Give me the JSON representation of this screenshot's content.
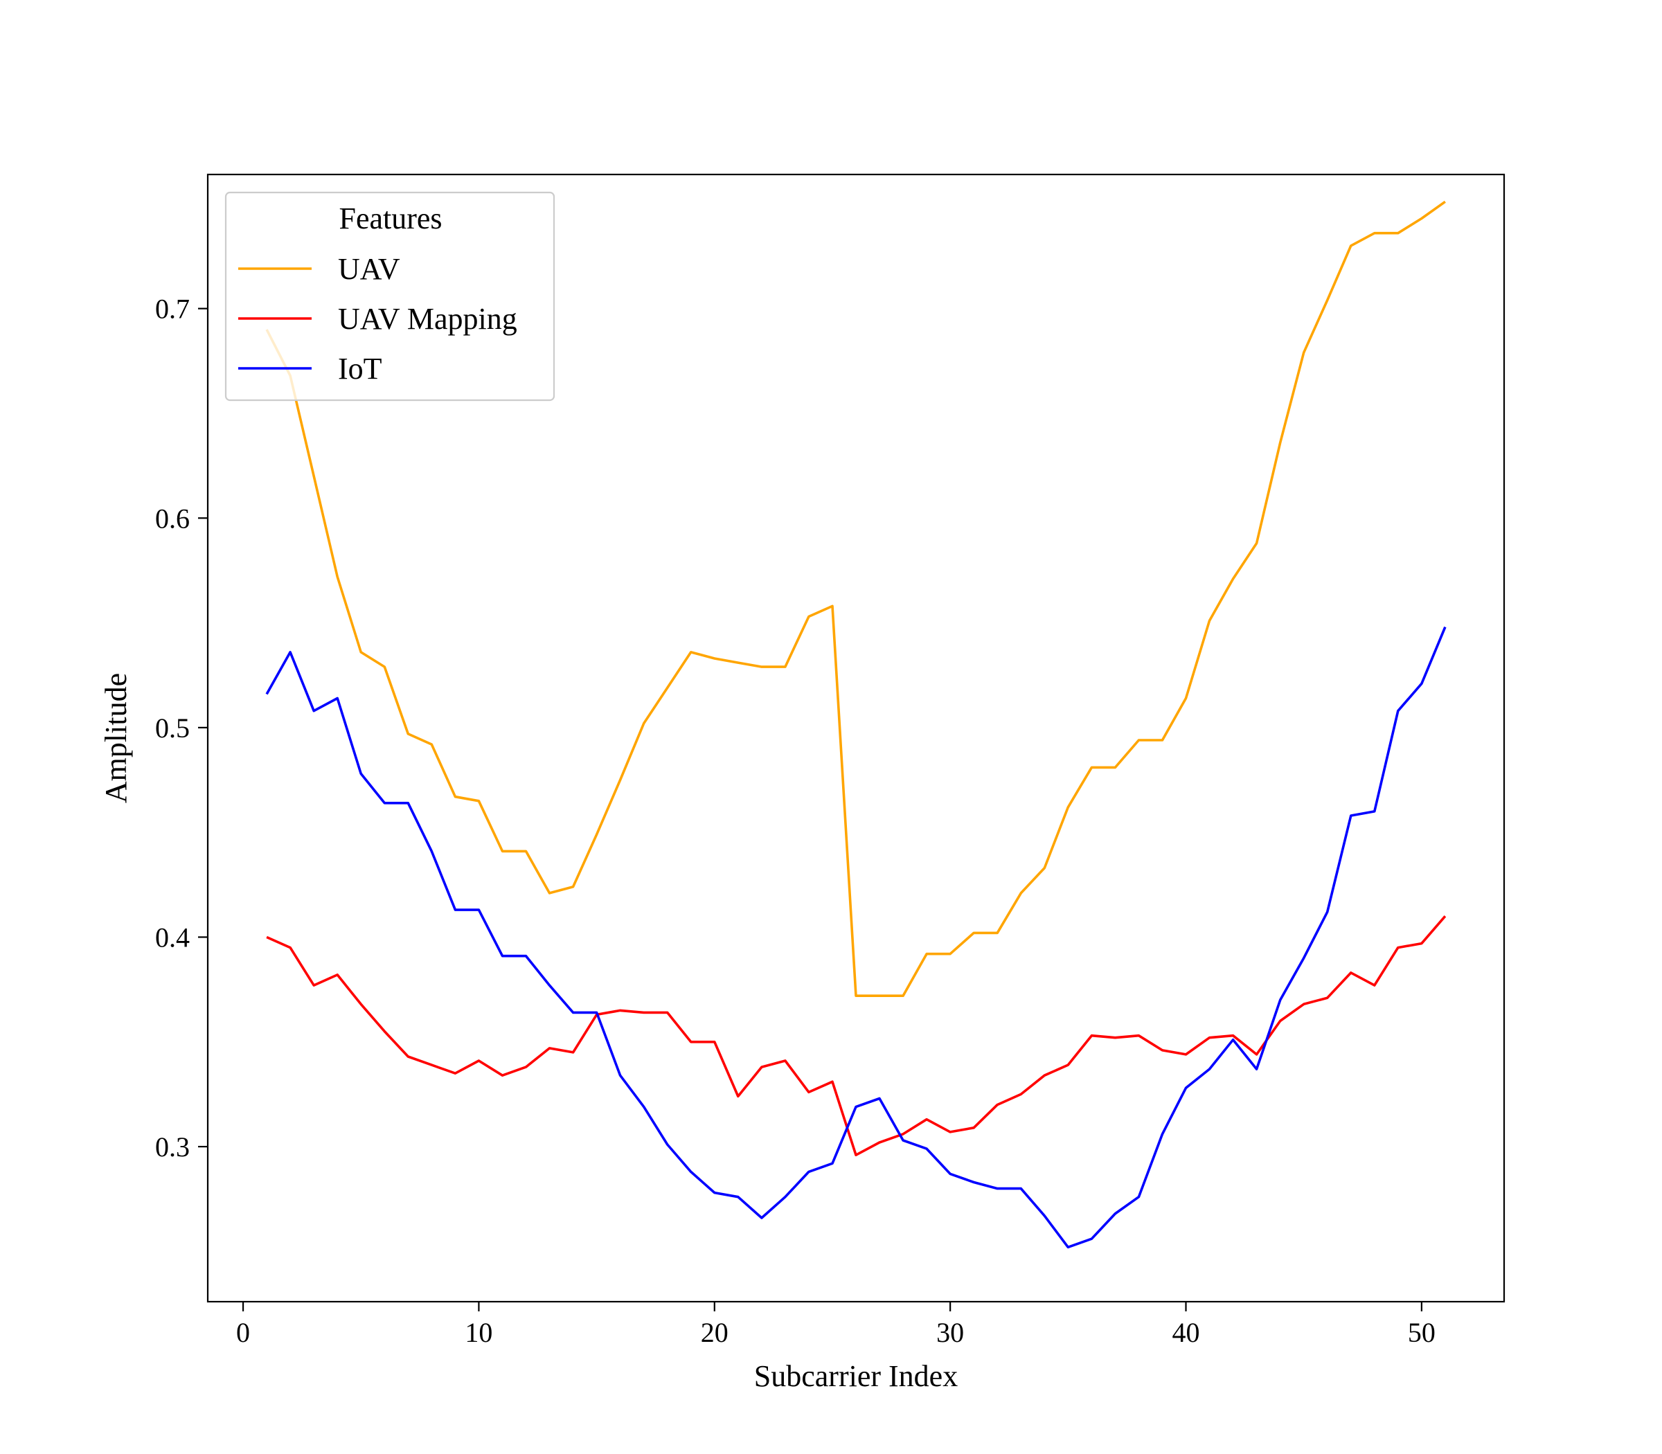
{
  "chart_data": {
    "type": "line",
    "title": "",
    "xlabel": "Subcarrier Index",
    "ylabel": "Amplitude",
    "xlim": [
      -1.5,
      53.5
    ],
    "ylim": [
      0.226,
      0.764
    ],
    "xticks": [
      0,
      10,
      20,
      30,
      40,
      50
    ],
    "yticks": [
      0.3,
      0.4,
      0.5,
      0.6,
      0.7
    ],
    "xtick_labels": [
      "0",
      "10",
      "20",
      "30",
      "40",
      "50"
    ],
    "ytick_labels": [
      "0.3",
      "0.4",
      "0.5",
      "0.6",
      "0.7"
    ],
    "grid": false,
    "legend": {
      "title": "Features",
      "placement": "upper-left"
    },
    "x": [
      1,
      2,
      3,
      4,
      5,
      6,
      7,
      8,
      9,
      10,
      11,
      12,
      13,
      14,
      15,
      16,
      17,
      18,
      19,
      20,
      21,
      22,
      23,
      24,
      25,
      26,
      27,
      28,
      29,
      30,
      31,
      32,
      33,
      34,
      35,
      36,
      37,
      38,
      39,
      40,
      41,
      42,
      43,
      44,
      45,
      46,
      47,
      48,
      49,
      50,
      51
    ],
    "series": [
      {
        "name": "UAV",
        "color": "#ffa500",
        "values": [
          0.69,
          0.668,
          0.62,
          0.572,
          0.536,
          0.529,
          0.497,
          0.492,
          0.467,
          0.465,
          0.441,
          0.441,
          0.421,
          0.424,
          0.449,
          0.475,
          0.502,
          0.519,
          0.536,
          0.533,
          0.531,
          0.529,
          0.529,
          0.553,
          0.558,
          0.372,
          0.372,
          0.372,
          0.392,
          0.392,
          0.402,
          0.402,
          0.421,
          0.433,
          0.462,
          0.481,
          0.481,
          0.494,
          0.494,
          0.514,
          0.551,
          0.571,
          0.588,
          0.636,
          0.679,
          0.704,
          0.73,
          0.736,
          0.736,
          0.743,
          0.751
        ]
      },
      {
        "name": "UAV Mapping",
        "color": "#ff0000",
        "values": [
          0.4,
          0.395,
          0.377,
          0.382,
          0.368,
          0.355,
          0.343,
          0.339,
          0.335,
          0.341,
          0.334,
          0.338,
          0.347,
          0.345,
          0.363,
          0.365,
          0.364,
          0.364,
          0.35,
          0.35,
          0.324,
          0.338,
          0.341,
          0.326,
          0.331,
          0.296,
          0.302,
          0.306,
          0.313,
          0.307,
          0.309,
          0.32,
          0.325,
          0.334,
          0.339,
          0.353,
          0.352,
          0.353,
          0.346,
          0.344,
          0.352,
          0.353,
          0.344,
          0.36,
          0.368,
          0.371,
          0.383,
          0.377,
          0.395,
          0.397,
          0.41
        ]
      },
      {
        "name": "IoT",
        "color": "#0000ff",
        "values": [
          0.516,
          0.536,
          0.508,
          0.514,
          0.478,
          0.464,
          0.464,
          0.441,
          0.413,
          0.413,
          0.391,
          0.391,
          0.377,
          0.364,
          0.364,
          0.334,
          0.319,
          0.301,
          0.288,
          0.278,
          0.276,
          0.266,
          0.276,
          0.288,
          0.292,
          0.319,
          0.323,
          0.303,
          0.299,
          0.287,
          0.283,
          0.28,
          0.28,
          0.267,
          0.252,
          0.256,
          0.268,
          0.276,
          0.306,
          0.328,
          0.337,
          0.351,
          0.337,
          0.37,
          0.39,
          0.412,
          0.458,
          0.46,
          0.508,
          0.521,
          0.548
        ]
      }
    ]
  }
}
